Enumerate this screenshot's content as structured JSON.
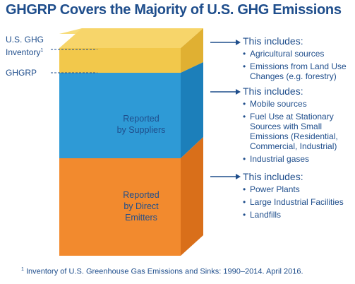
{
  "title": "GHGRP Covers the Majority of U.S. GHG Emissions",
  "left_labels": {
    "inventory_line1": "U.S. GHG",
    "inventory_line2": "Inventory",
    "inventory_sup": "1",
    "ghgrp": "GHGRP"
  },
  "blocks": {
    "suppliers": [
      "Reported",
      "by Suppliers"
    ],
    "direct": [
      "Reported",
      "by Direct",
      "Emitters"
    ]
  },
  "panels": [
    {
      "heading": "This includes:",
      "items": [
        "Agricultural sources",
        "Emissions from Land Use Changes (e.g. forestry)"
      ]
    },
    {
      "heading": "This includes:",
      "items": [
        "Mobile sources",
        "Fuel Use at Stationary Sources with Small Emissions (Residential, Commercial, Industrial)",
        "Industrial gases"
      ]
    },
    {
      "heading": "This includes:",
      "items": [
        "Power Plants",
        "Large Industrial Facilities",
        "Landfills"
      ]
    }
  ],
  "footnote": {
    "sup": "1",
    "text": "Inventory of U.S. Greenhouse Gas Emissions and Sinks: 1990–2014. April 2016."
  },
  "colors": {
    "yellow_front": "#f2c84b",
    "yellow_side": "#e0b032",
    "yellow_top": "#f7dc7a",
    "blue_front": "#2e9ad6",
    "blue_side": "#1c7fba",
    "orange_front": "#f28a2e",
    "orange_side": "#d96f1a",
    "text": "#1f4e8c"
  }
}
